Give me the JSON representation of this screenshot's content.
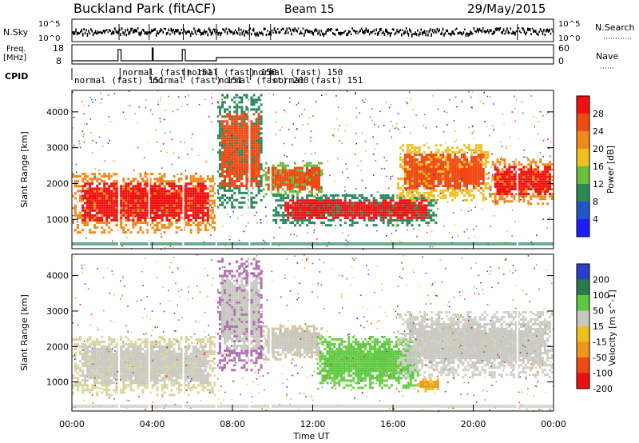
{
  "header": {
    "title": "Buckland Park (fitACF)",
    "beam": "Beam 15",
    "date": "29/May/2015"
  },
  "top_panels": {
    "nsky_label": "N.Sky",
    "nsky_ticks": [
      "10^5",
      "10^0"
    ],
    "nsearch_label": "N.Search",
    "nsearch_ticks": [
      "10^5",
      "10^0"
    ],
    "freq_label_line1": "Freq.",
    "freq_label_line2": "[MHz]",
    "freq_ticks": [
      "18",
      "8"
    ],
    "nave_label": "Nave",
    "nave_ticks": [
      "60",
      "0"
    ],
    "cpid_label": "CPID",
    "cpid_segments": [
      {
        "label": "normal (fast) 151",
        "start_hour": 0.0
      },
      {
        "label": "normal (fast) 151",
        "start_hour": 2.4
      },
      {
        "label": "normal (fast) 151",
        "start_hour": 3.9
      },
      {
        "label": "normal (fast) 150",
        "start_hour": 5.6
      },
      {
        "label": "normal (fast) 200",
        "start_hour": 7.2
      },
      {
        "label": "normal (fast) 150",
        "start_hour": 8.9
      },
      {
        "label": "normal (fast) 151",
        "start_hour": 9.9
      }
    ]
  },
  "chart_data": [
    {
      "type": "heatmap",
      "title": "Power",
      "ylabel": "Slant Range [km]",
      "yticks": [
        "1000",
        "2000",
        "3000",
        "4000"
      ],
      "ylim": [
        180,
        4600
      ],
      "xlim_hours": [
        0,
        24
      ],
      "colorbar_label": "Power [dB]",
      "colorbar_ticks": [
        "4",
        "8",
        "12",
        "16",
        "20",
        "24",
        "28"
      ],
      "colorbar_colors": [
        "#1c1cff",
        "#2255c8",
        "#2a8a5a",
        "#6cbf3c",
        "#f0c020",
        "#f08a18",
        "#f04a14",
        "#f01010"
      ],
      "echo_regions": [
        {
          "t0": 0.0,
          "t1": 7.2,
          "r0": 600,
          "r1": 2300,
          "core": "#f01010",
          "edge": "#f08a18"
        },
        {
          "t0": 7.2,
          "t1": 9.5,
          "r0": 1300,
          "r1": 4500,
          "core": "#f04a14",
          "edge": "#2a8a5a"
        },
        {
          "t0": 9.5,
          "t1": 12.5,
          "r0": 1600,
          "r1": 2600,
          "core": "#f04a14",
          "edge": "#6cbf3c"
        },
        {
          "t0": 10.0,
          "t1": 18.2,
          "r0": 800,
          "r1": 1700,
          "core": "#f01010",
          "edge": "#2a8a5a"
        },
        {
          "t0": 16.2,
          "t1": 20.8,
          "r0": 1500,
          "r1": 3100,
          "core": "#f04a14",
          "edge": "#f0c020"
        },
        {
          "t0": 20.8,
          "t1": 24.0,
          "r0": 1400,
          "r1": 2700,
          "core": "#f01010",
          "edge": "#f08a18"
        }
      ]
    },
    {
      "type": "heatmap",
      "title": "Velocity",
      "ylabel": "Slant Range [km]",
      "yticks": [
        "1000",
        "2000",
        "3000",
        "4000"
      ],
      "ylim": [
        180,
        4600
      ],
      "xlim_hours": [
        0,
        24
      ],
      "colorbar_label": "Velocity [m s^-1]",
      "colorbar_ticks": [
        "200",
        "100",
        "50",
        "15",
        "-15",
        "-50",
        "-100",
        "-200"
      ],
      "colorbar_colors": [
        "#2b3fc8",
        "#2a7a50",
        "#5cc840",
        "#c8c8c0",
        "#f0c020",
        "#f0961c",
        "#f04a14",
        "#e81010"
      ],
      "echo_regions": [
        {
          "t0": 0.0,
          "t1": 7.2,
          "r0": 600,
          "r1": 2300,
          "core": "#c8c8c0",
          "edge": "#d8d4a0"
        },
        {
          "t0": 7.2,
          "t1": 9.5,
          "r0": 1300,
          "r1": 4500,
          "core": "#c8c8c0",
          "edge": "#b070b0"
        },
        {
          "t0": 9.5,
          "t1": 12.5,
          "r0": 1600,
          "r1": 2600,
          "core": "#c8c8c0",
          "edge": "#d0c8a0"
        },
        {
          "t0": 12.2,
          "t1": 17.3,
          "r0": 800,
          "r1": 2300,
          "core": "#5cc840",
          "edge": "#6ad048"
        },
        {
          "t0": 17.2,
          "t1": 18.3,
          "r0": 700,
          "r1": 1100,
          "core": "#f0961c",
          "edge": "#f0c020"
        },
        {
          "t0": 16.2,
          "t1": 24.0,
          "r0": 1100,
          "r1": 3000,
          "core": "#c8c8c0",
          "edge": "#d0d0c8"
        }
      ]
    }
  ],
  "x_axis": {
    "label": "Time UT",
    "ticks": [
      "00:00",
      "04:00",
      "08:00",
      "12:00",
      "16:00",
      "20:00",
      "00:00"
    ]
  }
}
